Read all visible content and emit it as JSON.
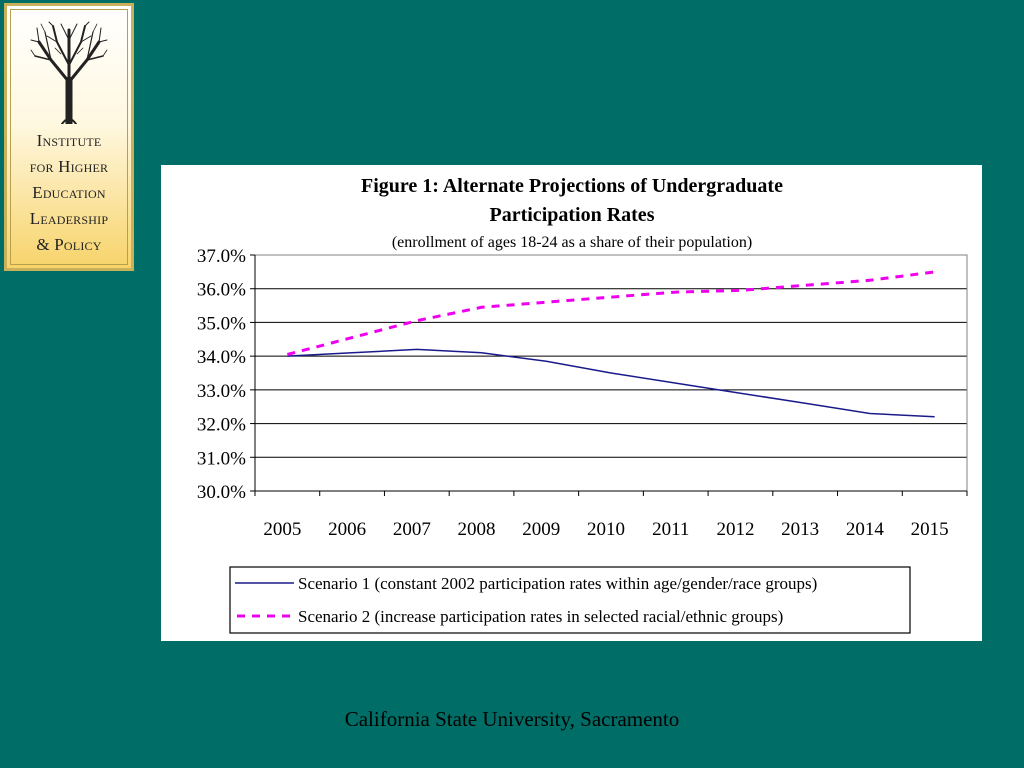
{
  "logo": {
    "icon": "tree-icon",
    "lines": [
      "Institute",
      "for Higher",
      "Education",
      "Leadership",
      "& Policy"
    ]
  },
  "footer": {
    "text": "California State University, Sacramento"
  },
  "colors": {
    "background": "#006e66",
    "series1": "#1a1a8c",
    "series2": "#ee00ee"
  },
  "chart_data": {
    "type": "line",
    "title_lines": [
      "Figure 1:  Alternate Projections of Undergraduate",
      "Participation Rates"
    ],
    "subtitle": "(enrollment of ages 18-24 as a share of their population)",
    "x": [
      "2005",
      "2006",
      "2007",
      "2008",
      "2009",
      "2010",
      "2011",
      "2012",
      "2013",
      "2014",
      "2015"
    ],
    "ylim": [
      30.0,
      37.0
    ],
    "yticks": [
      "30.0%",
      "31.0%",
      "32.0%",
      "33.0%",
      "34.0%",
      "35.0%",
      "36.0%",
      "37.0%"
    ],
    "grid": true,
    "legend_position": "bottom",
    "series": [
      {
        "name": "Scenario 1 (constant 2002 participation rates within age/gender/race groups)",
        "style": "solid",
        "values": [
          34.0,
          34.1,
          34.2,
          34.1,
          33.85,
          33.5,
          33.2,
          32.9,
          32.6,
          32.3,
          32.2
        ]
      },
      {
        "name": "Scenario 2 (increase participation rates in selected racial/ethnic groups)",
        "style": "dashed",
        "values": [
          34.05,
          34.55,
          35.05,
          35.45,
          35.6,
          35.75,
          35.9,
          35.95,
          36.1,
          36.25,
          36.5
        ]
      }
    ]
  }
}
